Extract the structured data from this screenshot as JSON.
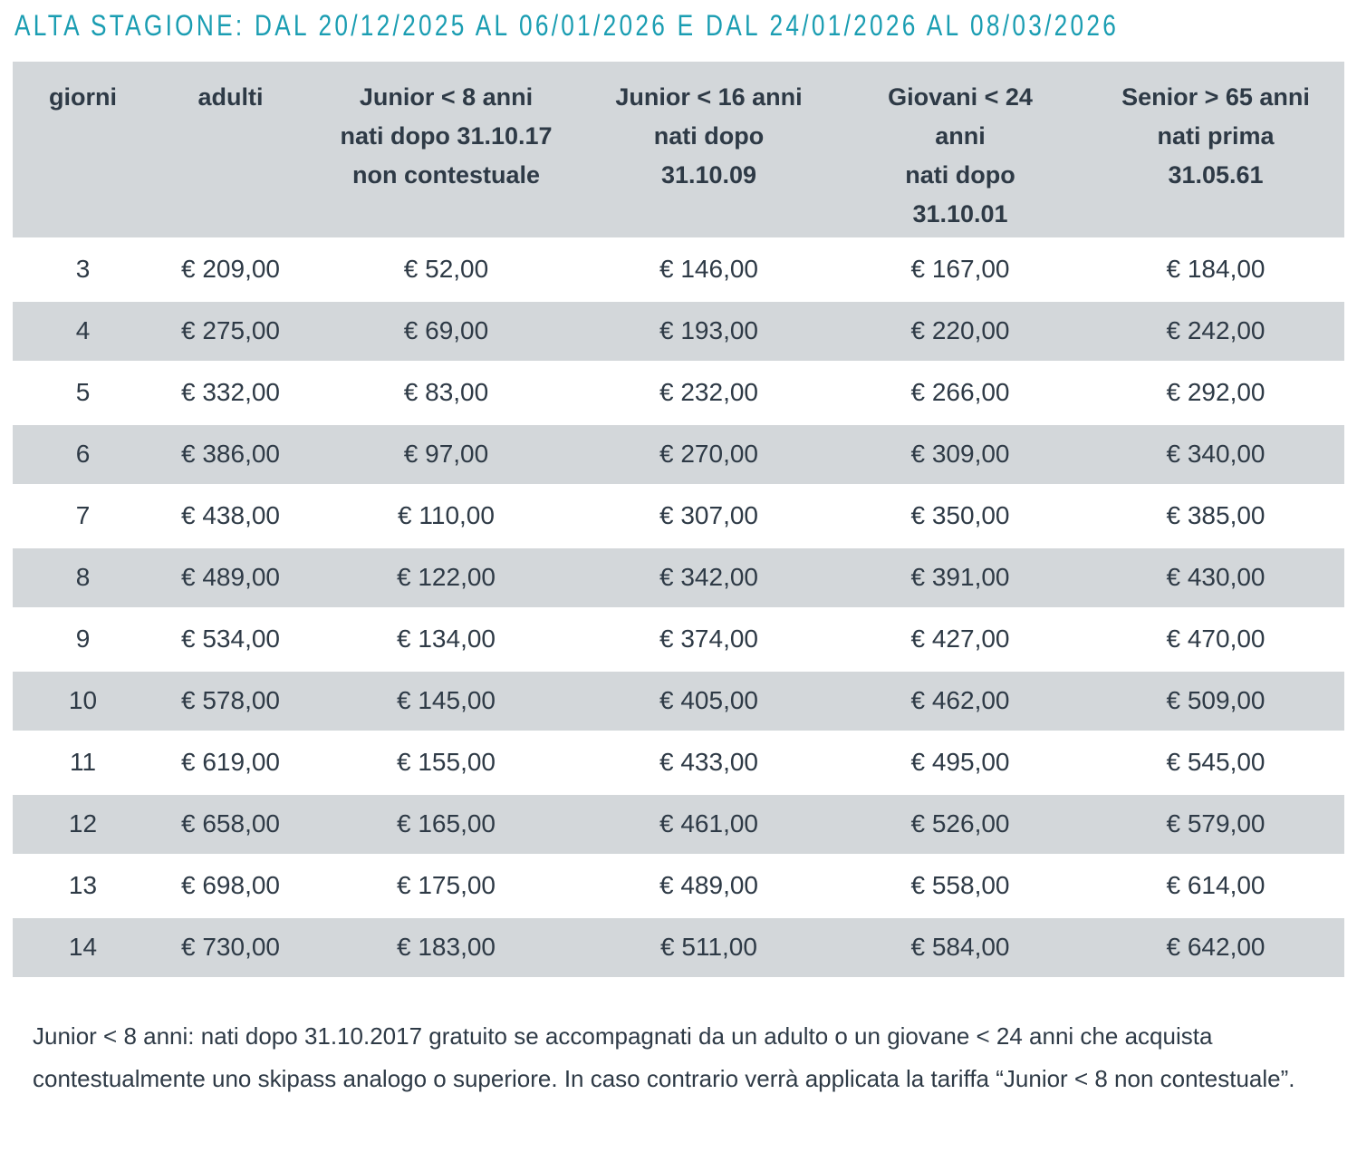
{
  "title": "ALTA STAGIONE: DAL 20/12/2025 AL 06/01/2026 E DAL 24/01/2026 AL 08/03/2026",
  "colors": {
    "accent_teal": "#1A9DB2",
    "header_row_bg": "#D3D7DA",
    "alt_row_bg": "#D3D7DA",
    "text": "#2E3A46",
    "background": "#FFFFFF"
  },
  "table": {
    "columns": [
      {
        "id": "giorni",
        "label_lines": [
          "giorni"
        ]
      },
      {
        "id": "adulti",
        "label_lines": [
          "adulti"
        ]
      },
      {
        "id": "junior8",
        "label_lines": [
          "Junior < 8 anni",
          "nati dopo 31.10.17",
          "non contestuale"
        ]
      },
      {
        "id": "junior16",
        "label_lines": [
          "Junior < 16 anni",
          "nati dopo",
          "31.10.09"
        ]
      },
      {
        "id": "giovani24",
        "label_lines": [
          "Giovani < 24",
          "anni",
          "nati dopo",
          "31.10.01"
        ]
      },
      {
        "id": "senior65",
        "label_lines": [
          "Senior > 65 anni",
          "nati prima",
          "31.05.61"
        ]
      }
    ],
    "rows": [
      [
        "3",
        "€ 209,00",
        "€ 52,00",
        "€ 146,00",
        "€ 167,00",
        "€ 184,00"
      ],
      [
        "4",
        "€ 275,00",
        "€ 69,00",
        "€ 193,00",
        "€ 220,00",
        "€ 242,00"
      ],
      [
        "5",
        "€ 332,00",
        "€ 83,00",
        "€ 232,00",
        "€ 266,00",
        "€ 292,00"
      ],
      [
        "6",
        "€ 386,00",
        "€ 97,00",
        "€ 270,00",
        "€ 309,00",
        "€ 340,00"
      ],
      [
        "7",
        "€ 438,00",
        "€ 110,00",
        "€ 307,00",
        "€ 350,00",
        "€ 385,00"
      ],
      [
        "8",
        "€ 489,00",
        "€ 122,00",
        "€ 342,00",
        "€ 391,00",
        "€ 430,00"
      ],
      [
        "9",
        "€ 534,00",
        "€ 134,00",
        "€ 374,00",
        "€ 427,00",
        "€ 470,00"
      ],
      [
        "10",
        "€ 578,00",
        "€ 145,00",
        "€ 405,00",
        "€ 462,00",
        "€ 509,00"
      ],
      [
        "11",
        "€ 619,00",
        "€ 155,00",
        "€ 433,00",
        "€ 495,00",
        "€ 545,00"
      ],
      [
        "12",
        "€ 658,00",
        "€ 165,00",
        "€ 461,00",
        "€ 526,00",
        "€ 579,00"
      ],
      [
        "13",
        "€ 698,00",
        "€ 175,00",
        "€ 489,00",
        "€ 558,00",
        "€ 614,00"
      ],
      [
        "14",
        "€ 730,00",
        "€ 183,00",
        "€ 511,00",
        "€ 584,00",
        "€ 642,00"
      ]
    ]
  },
  "footnote": "Junior < 8 anni: nati dopo 31.10.2017 gratuito se accompagnati da un adulto o un giovane < 24 anni che acquista contestualmente uno skipass analogo o superiore. In caso contrario verrà applicata la tariffa “Junior < 8 non contestuale”."
}
